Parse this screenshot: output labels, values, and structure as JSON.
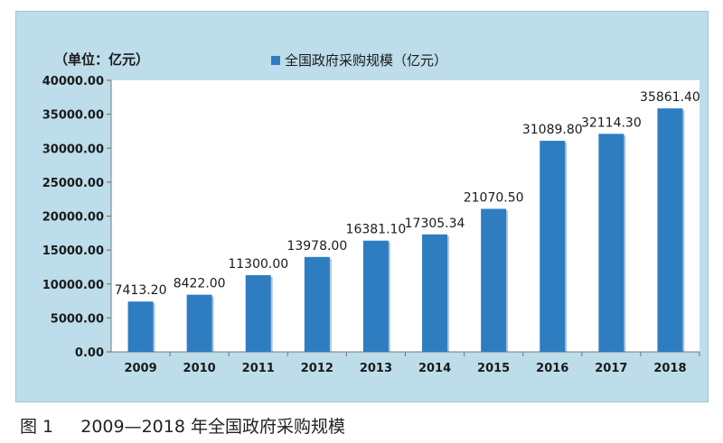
{
  "chart_data": {
    "type": "bar",
    "unit_label": "（单位：亿元）",
    "legend": "全国政府采购规模（亿元）",
    "categories": [
      "2009",
      "2010",
      "2011",
      "2012",
      "2013",
      "2014",
      "2015",
      "2016",
      "2017",
      "2018"
    ],
    "values": [
      7413.2,
      8422.0,
      11300.0,
      13978.0,
      16381.1,
      17305.34,
      21070.5,
      31089.8,
      32114.3,
      35861.4
    ],
    "value_labels": [
      "7413.20",
      "8422.00",
      "11300.00",
      "13978.00",
      "16381.10",
      "17305.34",
      "21070.50",
      "31089.80",
      "32114.30",
      "35861.40"
    ],
    "yticks": [
      "0.00",
      "5000.00",
      "10000.00",
      "15000.00",
      "20000.00",
      "25000.00",
      "30000.00",
      "35000.00",
      "40000.00"
    ],
    "ylim": [
      0,
      40000
    ],
    "grid": false,
    "legend_position": "top-center"
  },
  "colors": {
    "bar": "#2e7dc1",
    "bar_shadow": "#1f5f96",
    "outer_background": "#bcdde9",
    "plot_background": "#ffffff",
    "text": "#1a1a1a"
  },
  "caption": {
    "figure_no": "图 1",
    "text": "2009—2018 年全国政府采购规模"
  }
}
